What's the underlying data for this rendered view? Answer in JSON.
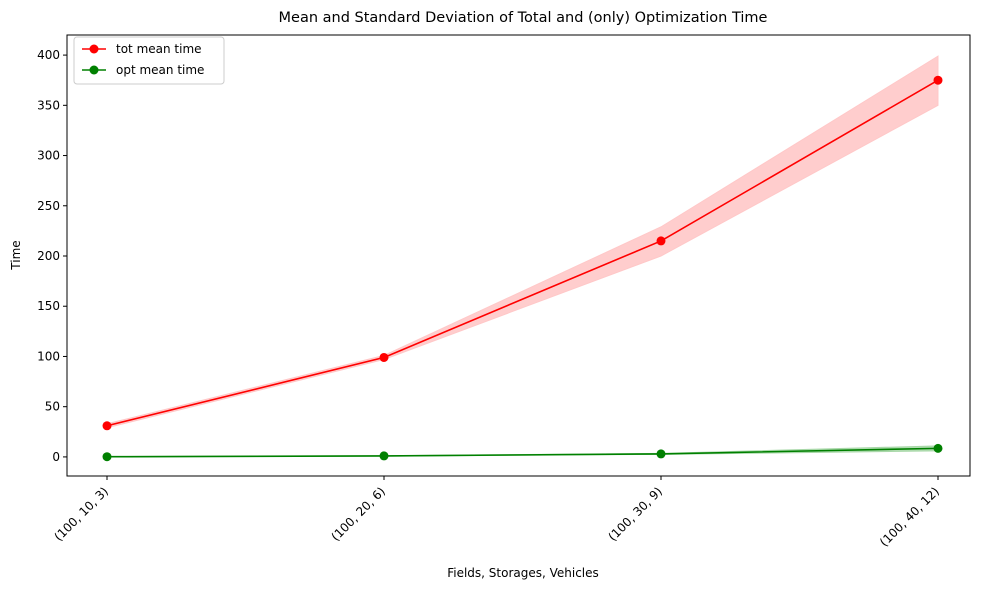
{
  "chart_data": {
    "type": "line",
    "title": "Mean and Standard Deviation of Total and (only) Optimization Time",
    "xlabel": "Fields, Storages, Vehicles",
    "ylabel": "Time",
    "categories": [
      "(100, 10, 3)",
      "(100, 20, 6)",
      "(100, 30, 9)",
      "(100, 40, 12)"
    ],
    "ylim": [
      -19,
      420
    ],
    "yticks": [
      0,
      50,
      100,
      150,
      200,
      250,
      300,
      350,
      400
    ],
    "grid": false,
    "legend_position": "top-left",
    "series": [
      {
        "name": "tot mean time",
        "color": "#ff0000",
        "band_color": "#ffc8c8",
        "values": [
          31,
          99,
          215,
          375
        ],
        "lower": [
          29,
          97,
          200,
          350
        ],
        "upper": [
          33,
          101,
          229,
          399
        ]
      },
      {
        "name": "opt mean time",
        "color": "#008000",
        "band_color": "#a8d8a8",
        "values": [
          0.2,
          1,
          3,
          8.5
        ],
        "lower": [
          0.1,
          0.8,
          2.5,
          6
        ],
        "upper": [
          0.3,
          1.2,
          3.5,
          11
        ]
      }
    ]
  }
}
